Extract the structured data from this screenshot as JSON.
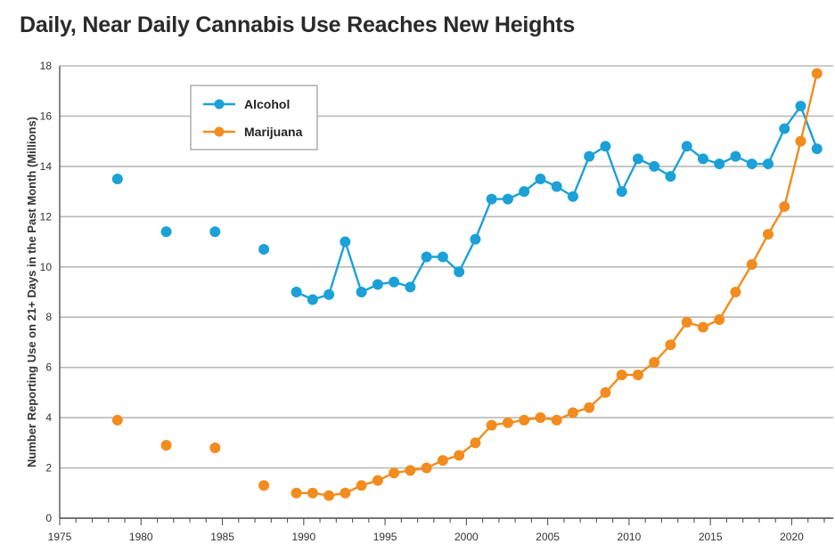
{
  "chart_data": {
    "type": "line",
    "title": "Daily, Near Daily Cannabis Use Reaches New Heights",
    "xlabel": "",
    "ylabel": "Number Reporting Use on 21+ Days in the Past Month (Millions)",
    "xlim": [
      1975,
      2022
    ],
    "ylim": [
      0,
      18
    ],
    "x_ticks": [
      1975,
      1980,
      1985,
      1990,
      1995,
      2000,
      2005,
      2010,
      2015,
      2020
    ],
    "y_ticks": [
      0,
      2,
      4,
      6,
      8,
      10,
      12,
      14,
      16,
      18
    ],
    "grid": "horizontal",
    "legend_position": "top-left",
    "series": [
      {
        "name": "Alcohol",
        "color": "#1ba1d8",
        "unconnected_points": [
          {
            "x": 1979,
            "y": 13.5
          },
          {
            "x": 1982,
            "y": 11.4
          },
          {
            "x": 1985,
            "y": 11.4
          },
          {
            "x": 1988,
            "y": 10.7
          }
        ],
        "points": [
          {
            "x": 1990,
            "y": 9.0
          },
          {
            "x": 1991,
            "y": 8.7
          },
          {
            "x": 1992,
            "y": 8.9
          },
          {
            "x": 1993,
            "y": 11.0
          },
          {
            "x": 1994,
            "y": 9.0
          },
          {
            "x": 1995,
            "y": 9.3
          },
          {
            "x": 1996,
            "y": 9.4
          },
          {
            "x": 1997,
            "y": 9.2
          },
          {
            "x": 1998,
            "y": 10.4
          },
          {
            "x": 1999,
            "y": 10.4
          },
          {
            "x": 2000,
            "y": 9.8
          },
          {
            "x": 2001,
            "y": 11.1
          },
          {
            "x": 2002,
            "y": 12.7
          },
          {
            "x": 2003,
            "y": 12.7
          },
          {
            "x": 2004,
            "y": 13.0
          },
          {
            "x": 2005,
            "y": 13.5
          },
          {
            "x": 2006,
            "y": 13.2
          },
          {
            "x": 2007,
            "y": 12.8
          },
          {
            "x": 2008,
            "y": 14.4
          },
          {
            "x": 2009,
            "y": 14.8
          },
          {
            "x": 2010,
            "y": 13.0
          },
          {
            "x": 2011,
            "y": 14.3
          },
          {
            "x": 2012,
            "y": 14.0
          },
          {
            "x": 2013,
            "y": 13.6
          },
          {
            "x": 2014,
            "y": 14.8
          },
          {
            "x": 2015,
            "y": 14.3
          },
          {
            "x": 2016,
            "y": 14.1
          },
          {
            "x": 2017,
            "y": 14.4
          },
          {
            "x": 2018,
            "y": 14.1
          },
          {
            "x": 2019,
            "y": 14.1
          },
          {
            "x": 2020,
            "y": 15.5
          },
          {
            "x": 2021,
            "y": 16.4
          },
          {
            "x": 2022,
            "y": 14.7
          }
        ]
      },
      {
        "name": "Marijuana",
        "color": "#f28c1e",
        "unconnected_points": [
          {
            "x": 1979,
            "y": 3.9
          },
          {
            "x": 1982,
            "y": 2.9
          },
          {
            "x": 1985,
            "y": 2.8
          },
          {
            "x": 1988,
            "y": 1.3
          }
        ],
        "points": [
          {
            "x": 1990,
            "y": 1.0
          },
          {
            "x": 1991,
            "y": 1.0
          },
          {
            "x": 1992,
            "y": 0.9
          },
          {
            "x": 1993,
            "y": 1.0
          },
          {
            "x": 1994,
            "y": 1.3
          },
          {
            "x": 1995,
            "y": 1.5
          },
          {
            "x": 1996,
            "y": 1.8
          },
          {
            "x": 1997,
            "y": 1.9
          },
          {
            "x": 1998,
            "y": 2.0
          },
          {
            "x": 1999,
            "y": 2.3
          },
          {
            "x": 2000,
            "y": 2.5
          },
          {
            "x": 2001,
            "y": 3.0
          },
          {
            "x": 2002,
            "y": 3.7
          },
          {
            "x": 2003,
            "y": 3.8
          },
          {
            "x": 2004,
            "y": 3.9
          },
          {
            "x": 2005,
            "y": 4.0
          },
          {
            "x": 2006,
            "y": 3.9
          },
          {
            "x": 2007,
            "y": 4.2
          },
          {
            "x": 2008,
            "y": 4.4
          },
          {
            "x": 2009,
            "y": 5.0
          },
          {
            "x": 2010,
            "y": 5.7
          },
          {
            "x": 2011,
            "y": 5.7
          },
          {
            "x": 2012,
            "y": 6.2
          },
          {
            "x": 2013,
            "y": 6.9
          },
          {
            "x": 2014,
            "y": 7.8
          },
          {
            "x": 2015,
            "y": 7.6
          },
          {
            "x": 2016,
            "y": 7.9
          },
          {
            "x": 2017,
            "y": 9.0
          },
          {
            "x": 2018,
            "y": 10.1
          },
          {
            "x": 2019,
            "y": 11.3
          },
          {
            "x": 2020,
            "y": 12.4
          },
          {
            "x": 2021,
            "y": 15.0
          },
          {
            "x": 2022,
            "y": 17.7
          }
        ]
      }
    ]
  }
}
